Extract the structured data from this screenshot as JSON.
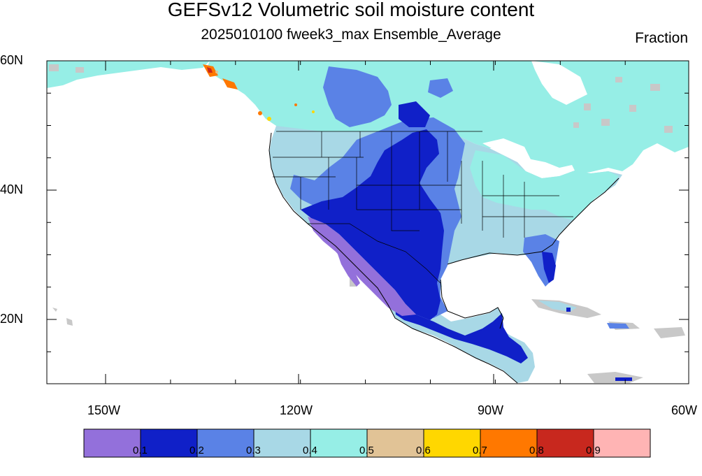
{
  "title": "GEFSv12 Volumetric soil moisture content",
  "subtitle": "2025010100 fweek3_max Ensemble_Average",
  "units": "Fraction",
  "map": {
    "lon_range": [
      -160,
      -60
    ],
    "lat_range": [
      10,
      60
    ],
    "lat_labels": [
      "60N",
      "40N",
      "20N"
    ],
    "lon_labels": [
      "150W",
      "120W",
      "90W",
      "60W"
    ],
    "colors": {
      "water": "#ffffff",
      "masked": "#c8c8c8",
      "border": "#000000"
    }
  },
  "colorbar": {
    "colors": [
      "#9370db",
      "#1020c8",
      "#5a82e6",
      "#a8d8e6",
      "#96eee6",
      "#e1c396",
      "#ffd700",
      "#ff7800",
      "#c8281e",
      "#ffb4b4"
    ],
    "labels": [
      "0.1",
      "0.2",
      "0.3",
      "0.4",
      "0.5",
      "0.6",
      "0.7",
      "0.8",
      "0.9"
    ]
  }
}
